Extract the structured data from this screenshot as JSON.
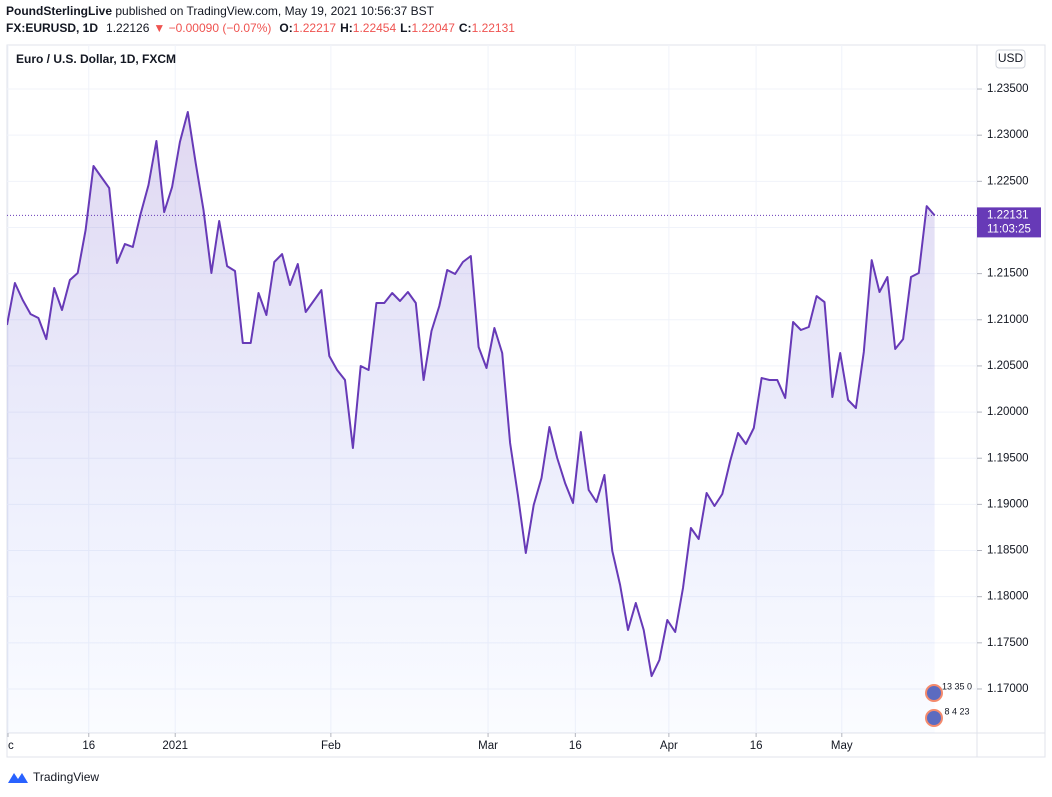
{
  "header": {
    "publisher": "PoundSterlingLive",
    "published": " published on TradingView.com, May 19, 2021 10:56:37 BST",
    "symbol": "FX:EURUSD, 1D",
    "last": "1.22126",
    "change": "▼ −0.00090 (−0.07%)",
    "ohlc": [
      {
        "label": "O:",
        "value": "1.22217"
      },
      {
        "label": "H:",
        "value": "1.22454"
      },
      {
        "label": "L:",
        "value": "1.22047"
      },
      {
        "label": "C:",
        "value": "1.22131"
      }
    ]
  },
  "footer": {
    "brand": "TradingView"
  },
  "chart_data": {
    "type": "area",
    "title": "Euro / U.S. Dollar, 1D, FXCM",
    "currency": "USD",
    "color": "#673ab7",
    "values": [
      1.20943,
      1.21398,
      1.21214,
      1.21062,
      1.21019,
      1.20791,
      1.21344,
      1.21106,
      1.21431,
      1.21507,
      1.21972,
      1.22666,
      1.22547,
      1.22427,
      1.21615,
      1.21821,
      1.21788,
      1.22146,
      1.2246,
      1.22937,
      1.22167,
      1.22438,
      1.22926,
      1.23251,
      1.22698,
      1.22189,
      1.21507,
      1.2207,
      1.21582,
      1.21528,
      1.20748,
      1.20748,
      1.2129,
      1.21052,
      1.21626,
      1.21712,
      1.21377,
      1.21604,
      1.21084,
      1.21203,
      1.21322,
      1.20607,
      1.20456,
      1.20347,
      1.19611,
      1.20499,
      1.20456,
      1.21182,
      1.21182,
      1.2129,
      1.21203,
      1.21301,
      1.21182,
      1.20347,
      1.20878,
      1.21149,
      1.21539,
      1.21496,
      1.21626,
      1.21691,
      1.20705,
      1.20477,
      1.20911,
      1.2064,
      1.19665,
      1.19101,
      1.18473,
      1.18993,
      1.19286,
      1.19838,
      1.19502,
      1.19231,
      1.19015,
      1.19784,
      1.19156,
      1.19026,
      1.19318,
      1.18495,
      1.18126,
      1.17639,
      1.17931,
      1.17639,
      1.1714,
      1.17314,
      1.17747,
      1.17617,
      1.18094,
      1.18744,
      1.18625,
      1.19123,
      1.18982,
      1.19112,
      1.1947,
      1.19773,
      1.19654,
      1.19827,
      1.20369,
      1.20347,
      1.20347,
      1.20152,
      1.20976,
      1.20889,
      1.20922,
      1.21257,
      1.21192,
      1.20163,
      1.2064,
      1.20131,
      1.20044,
      1.20651,
      1.21647,
      1.21301,
      1.21463,
      1.20683,
      1.20791,
      1.21463,
      1.21507,
      1.22232,
      1.22131
    ],
    "last_label": {
      "price": "1.22131",
      "timer": "11:03:25"
    },
    "events": [
      "13 35 0",
      "8 4 23"
    ],
    "xlim": [
      0,
      123.4
    ],
    "xticks": [
      {
        "value": 0.13,
        "label": "c"
      },
      {
        "value": 10.4,
        "label": "16"
      },
      {
        "value": 21.4,
        "label": "2021"
      },
      {
        "value": 41.2,
        "label": "Feb"
      },
      {
        "value": 61.2,
        "label": "Mar"
      },
      {
        "value": 72.3,
        "label": "16"
      },
      {
        "value": 84.2,
        "label": "Apr"
      },
      {
        "value": 95.3,
        "label": "16"
      },
      {
        "value": 106.2,
        "label": "May"
      }
    ],
    "ylim": [
      1.16523,
      1.23977
    ],
    "yticks": [
      {
        "value": 1.235,
        "label": "1.23500"
      },
      {
        "value": 1.23,
        "label": "1.23000"
      },
      {
        "value": 1.225,
        "label": "1.22500"
      },
      {
        "value": 1.22,
        "label": "1.22000"
      },
      {
        "value": 1.215,
        "label": "1.21500"
      },
      {
        "value": 1.21,
        "label": "1.21000"
      },
      {
        "value": 1.205,
        "label": "1.20500"
      },
      {
        "value": 1.2,
        "label": "1.20000"
      },
      {
        "value": 1.195,
        "label": "1.19500"
      },
      {
        "value": 1.19,
        "label": "1.19000"
      },
      {
        "value": 1.185,
        "label": "1.18500"
      },
      {
        "value": 1.18,
        "label": "1.18000"
      },
      {
        "value": 1.175,
        "label": "1.17500"
      },
      {
        "value": 1.17,
        "label": "1.17000"
      }
    ],
    "grid": true
  }
}
